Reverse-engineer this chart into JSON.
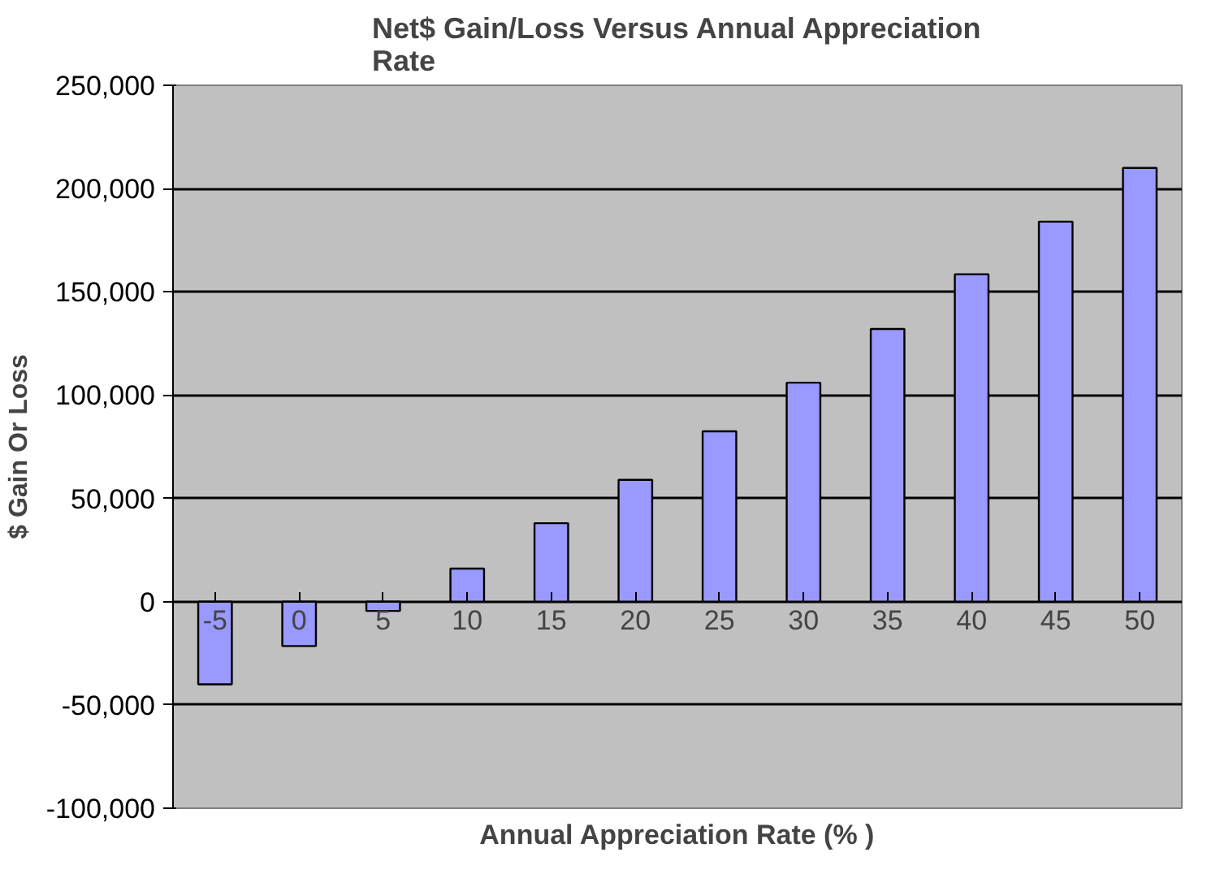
{
  "chart_data": {
    "type": "bar",
    "title": "Net$ Gain/Loss Versus Annual Appreciation Rate",
    "xlabel": "Annual Appreciation Rate (% )",
    "ylabel": "$ Gain Or Loss",
    "categories": [
      "-5",
      "0",
      "5",
      "10",
      "15",
      "20",
      "25",
      "30",
      "35",
      "40",
      "45",
      "50"
    ],
    "values": [
      -40000,
      -21500,
      -4500,
      16000,
      38000,
      59000,
      82500,
      106000,
      132000,
      158500,
      184000,
      210000
    ],
    "color": "#9999ff",
    "ylim": [
      -100000,
      250000
    ],
    "yticks": [
      {
        "value": -100000,
        "label": "-100,000"
      },
      {
        "value": -50000,
        "label": "-50,000"
      },
      {
        "value": 0,
        "label": "0"
      },
      {
        "value": 50000,
        "label": "50,000"
      },
      {
        "value": 100000,
        "label": "100,000"
      },
      {
        "value": 150000,
        "label": "150,000"
      },
      {
        "value": 200000,
        "label": "200,000"
      },
      {
        "value": 250000,
        "label": "250,000"
      }
    ],
    "grid": "y"
  }
}
